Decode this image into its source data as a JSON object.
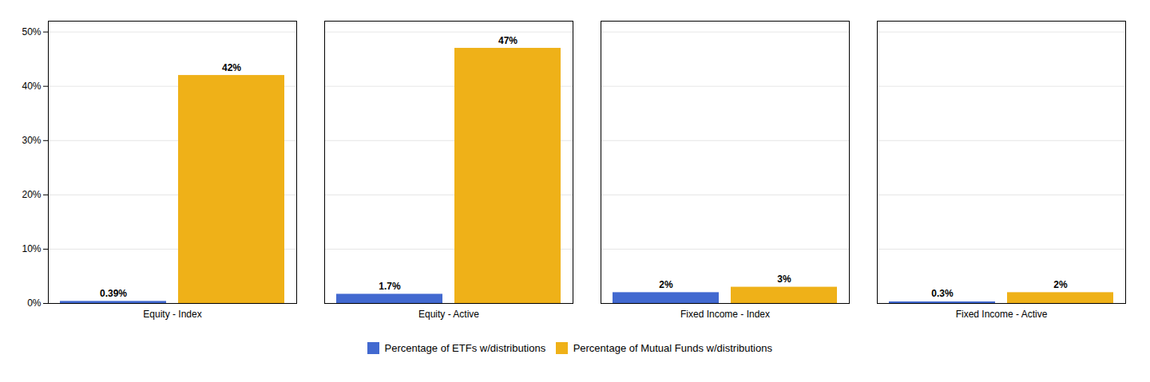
{
  "chart_data": {
    "type": "bar",
    "categories": [
      "Equity - Index",
      "Equity - Active",
      "Fixed Income - Index",
      "Fixed Income - Active"
    ],
    "series": [
      {
        "name": "Percentage of ETFs w/distributions",
        "values": [
          0.39,
          1.7,
          2.0,
          0.3
        ],
        "value_labels": [
          "0.39%",
          "1.7%",
          "2%",
          "0.3%"
        ]
      },
      {
        "name": "Percentage of Mutual Funds w/distributions",
        "values": [
          42.0,
          47.0,
          3.0,
          2.0
        ],
        "value_labels": [
          "42%",
          "47%",
          "3%",
          "2%"
        ]
      }
    ],
    "ylim": [
      0,
      52
    ],
    "yticks": [
      {
        "value": 0,
        "label": "0%"
      },
      {
        "value": 10,
        "label": "10%"
      },
      {
        "value": 20,
        "label": "20%"
      },
      {
        "value": 30,
        "label": "30%"
      },
      {
        "value": 40,
        "label": "40%"
      },
      {
        "value": 50,
        "label": "50%"
      }
    ],
    "grid": true,
    "legend": "bottom",
    "data_labels": true
  }
}
